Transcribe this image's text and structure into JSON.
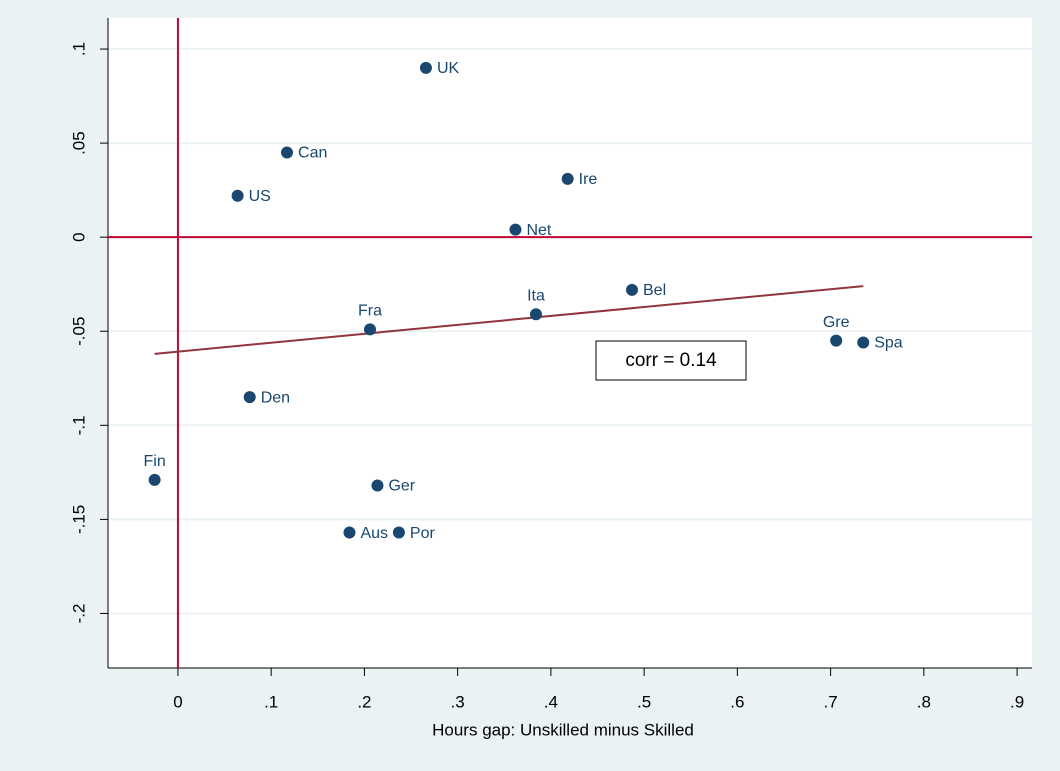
{
  "chart_data": {
    "type": "scatter",
    "x_label": "Hours gap: Unskilled minus Skilled",
    "point_labels": [
      "UK",
      "Can",
      "US",
      "Ire",
      "Net",
      "Bel",
      "Ita",
      "Fra",
      "Gre",
      "Spa",
      "Den",
      "Fin",
      "Ger",
      "Aus",
      "Por"
    ],
    "x": [
      0.266,
      0.117,
      0.064,
      0.418,
      0.362,
      0.487,
      0.384,
      0.206,
      0.706,
      0.735,
      0.077,
      -0.025,
      0.214,
      0.184,
      0.237
    ],
    "y": [
      0.09,
      0.045,
      0.022,
      0.031,
      0.004,
      -0.028,
      -0.041,
      -0.049,
      -0.055,
      -0.056,
      -0.085,
      -0.129,
      -0.132,
      -0.157,
      -0.157
    ],
    "color": "#1a476f",
    "fit_line": {
      "x": [
        -0.025,
        0.735
      ],
      "y": [
        -0.062,
        -0.026
      ],
      "color": "#90353b"
    },
    "reference_lines": {
      "x": 0,
      "y": 0,
      "color": "#c10534"
    },
    "annotation": "corr = 0.14",
    "xlim": [
      -0.075,
      0.916
    ],
    "ylim": [
      -0.229,
      0.1165
    ],
    "xticks": [
      0,
      {
        "value": 0.1,
        "label": ".1"
      },
      {
        "value": 0.2,
        "label": ".2"
      },
      {
        "value": 0.3,
        "label": ".3"
      },
      {
        "value": 0.4,
        "label": ".4"
      },
      {
        "value": 0.5,
        "label": ".5"
      },
      {
        "value": 0.6,
        "label": ".6"
      },
      {
        "value": 0.7,
        "label": ".7"
      },
      {
        "value": 0.8,
        "label": ".8"
      },
      {
        "value": 0.9,
        "label": ".9"
      }
    ],
    "yticks": [
      {
        "value": -0.2,
        "label": "-.2"
      },
      {
        "value": -0.15,
        "label": "-.15"
      },
      {
        "value": -0.1,
        "label": "-.1"
      },
      {
        "value": -0.05,
        "label": "-.05"
      },
      0,
      {
        "value": 0.05,
        "label": ".05"
      },
      {
        "value": 0.1,
        "label": ".1"
      }
    ],
    "grid": true
  }
}
